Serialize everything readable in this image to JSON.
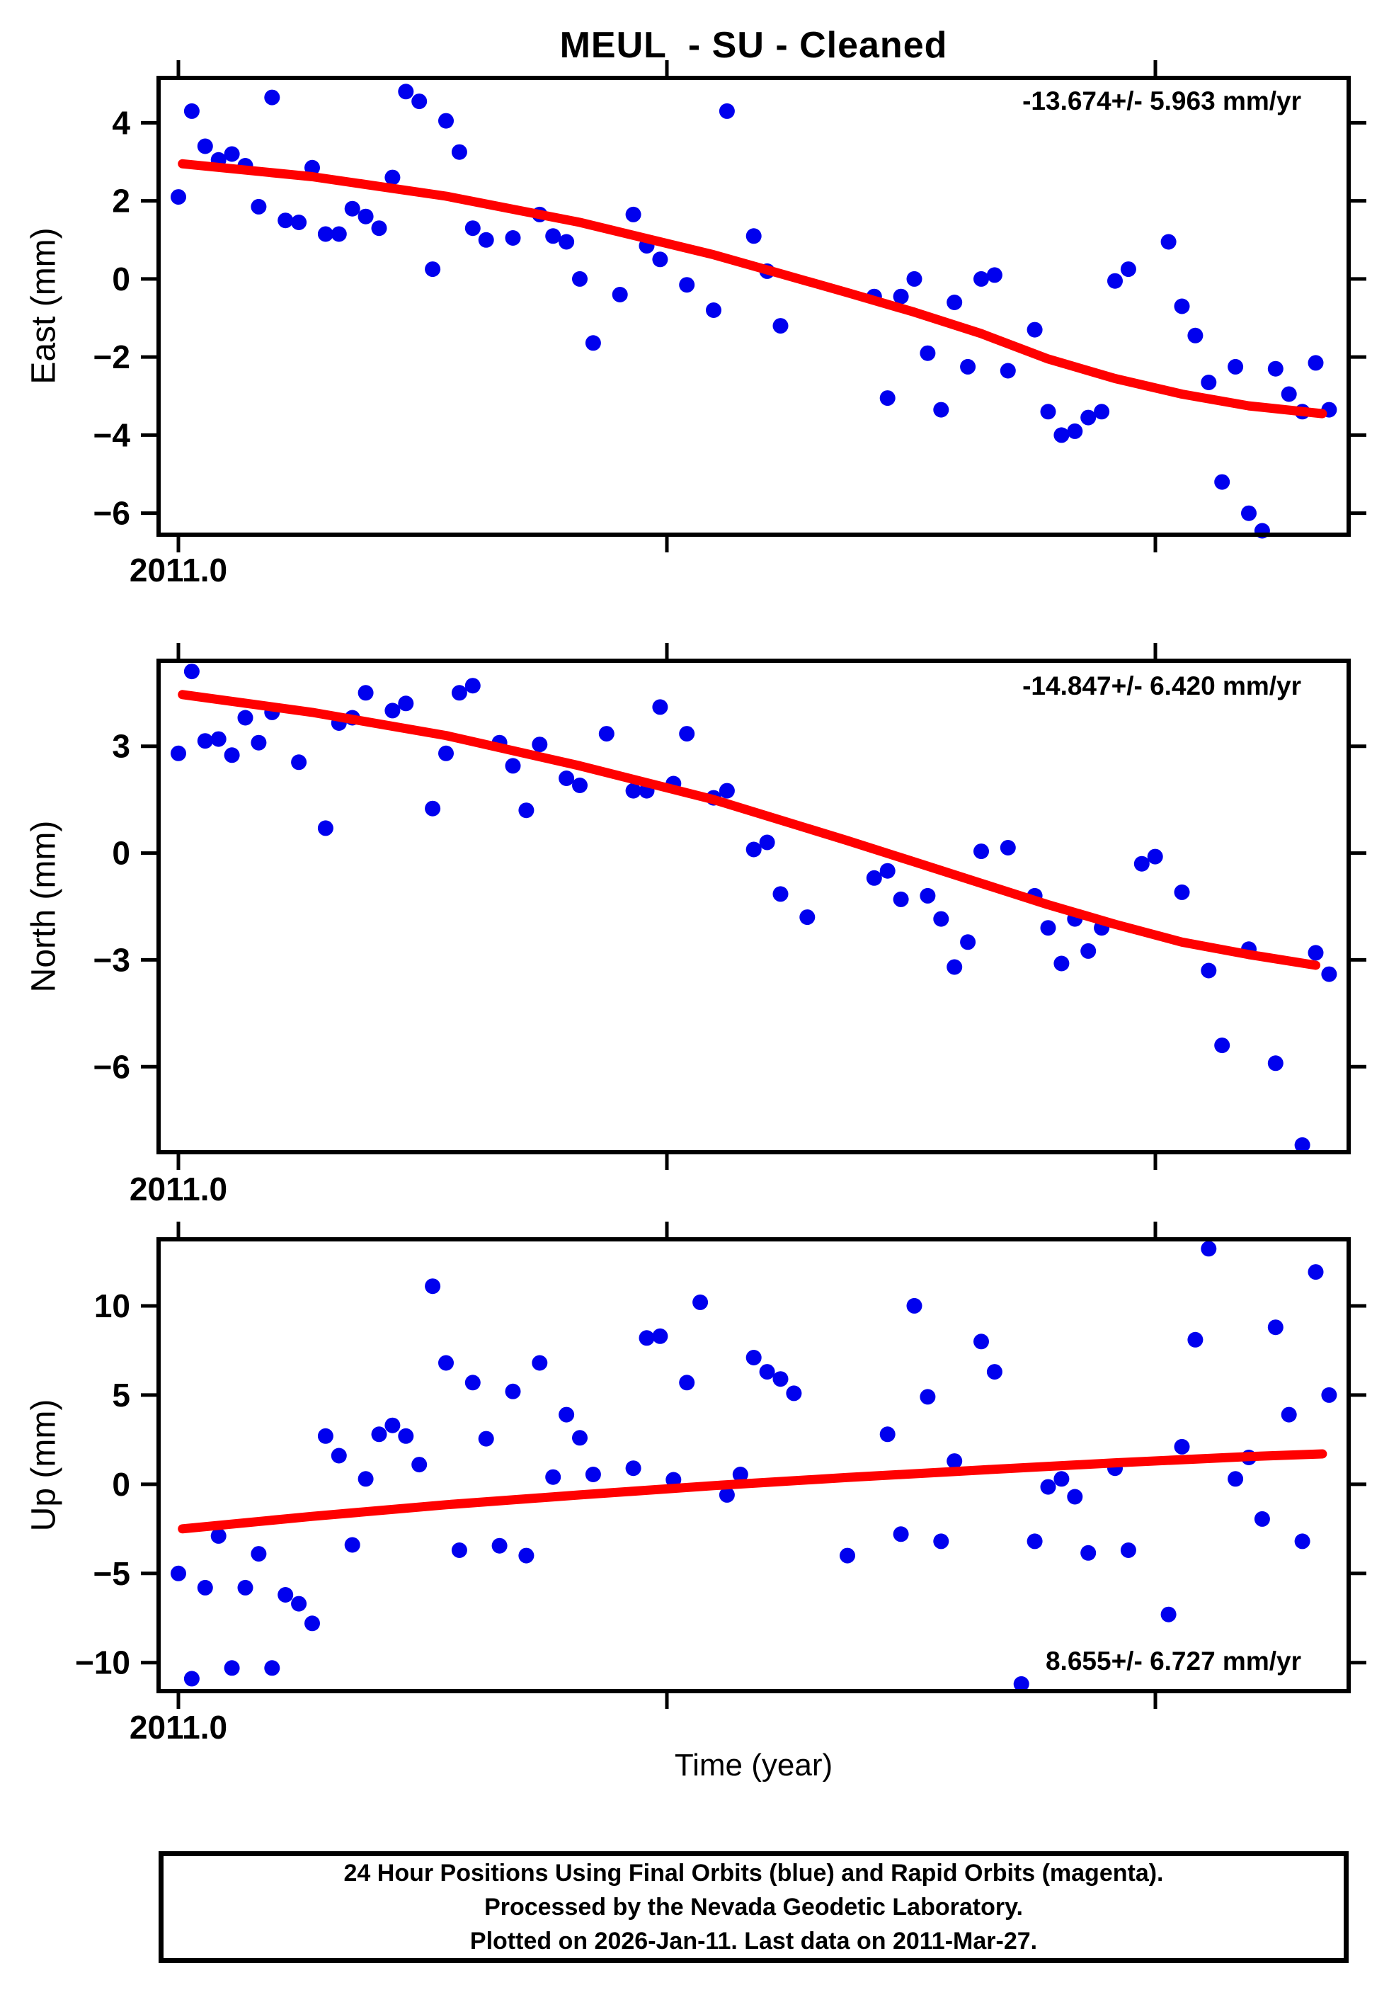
{
  "title": "MEUL  - SU - Cleaned",
  "x_axis_title": "Time (year)",
  "x_tick_label": "2011.0",
  "footer": {
    "line1": "24 Hour Positions Using Final Orbits (blue) and Rapid Orbits (magenta).",
    "line2": "Processed by the Nevada Geodetic Laboratory.",
    "line3": "Plotted on 2026-Jan-11. Last data on 2011-Mar-27."
  },
  "colors": {
    "final_orbit_points": "#0000ee",
    "fit_curve": "#ff0000",
    "frame": "#000000"
  },
  "chart_data": {
    "type": "scatter",
    "x_units": "decimal year",
    "x_start": 2011.0,
    "x_tick_values": [
      2011.0,
      2011.1,
      2011.2
    ],
    "x_tick_labels": [
      "2011.0",
      "",
      ""
    ],
    "x_range_days": [
      0,
      87
    ],
    "legend": "blue dots = daily 24-hour positions (final orbits); red line = model fit",
    "panels": [
      {
        "id": "east",
        "ylabel": "East (mm)",
        "rate_label": "-13.674+/- 5.963 mm/yr",
        "rate_label_corner": "top-right",
        "yticks": [
          4,
          2,
          0,
          -2,
          -4,
          -6
        ],
        "ylim": [
          -6.55,
          5.15
        ],
        "points_day_mm": [
          [
            0,
            2.1
          ],
          [
            1,
            4.3
          ],
          [
            2,
            3.4
          ],
          [
            3,
            3.05
          ],
          [
            4,
            3.2
          ],
          [
            5,
            2.9
          ],
          [
            6,
            1.85
          ],
          [
            7,
            4.65
          ],
          [
            8,
            1.5
          ],
          [
            9,
            1.45
          ],
          [
            10,
            2.85
          ],
          [
            11,
            1.15
          ],
          [
            12,
            1.15
          ],
          [
            13,
            1.8
          ],
          [
            14,
            1.6
          ],
          [
            15,
            1.3
          ],
          [
            16,
            2.6
          ],
          [
            17,
            4.8
          ],
          [
            18,
            4.55
          ],
          [
            19,
            0.25
          ],
          [
            20,
            4.05
          ],
          [
            21,
            3.25
          ],
          [
            22,
            1.3
          ],
          [
            23,
            1.0
          ],
          [
            25,
            1.05
          ],
          [
            27,
            1.65
          ],
          [
            28,
            1.1
          ],
          [
            29,
            0.95
          ],
          [
            30,
            0.0
          ],
          [
            31,
            -1.64
          ],
          [
            33,
            -0.4
          ],
          [
            34,
            1.65
          ],
          [
            35,
            0.85
          ],
          [
            36,
            0.5
          ],
          [
            38,
            -0.15
          ],
          [
            40,
            -0.8
          ],
          [
            41,
            4.3
          ],
          [
            43,
            1.1
          ],
          [
            44,
            0.2
          ],
          [
            45,
            -1.2
          ],
          [
            52,
            -0.45
          ],
          [
            53,
            -3.05
          ],
          [
            54,
            -0.45
          ],
          [
            55,
            0.0
          ],
          [
            56,
            -1.9
          ],
          [
            57,
            -3.35
          ],
          [
            58,
            -0.6
          ],
          [
            59,
            -2.25
          ],
          [
            60,
            0.0
          ],
          [
            61,
            0.1
          ],
          [
            62,
            -2.35
          ],
          [
            64,
            -1.3
          ],
          [
            65,
            -3.4
          ],
          [
            66,
            -4.0
          ],
          [
            67,
            -3.9
          ],
          [
            68,
            -3.55
          ],
          [
            69,
            -3.4
          ],
          [
            70,
            -0.05
          ],
          [
            71,
            0.25
          ],
          [
            74,
            0.95
          ],
          [
            75,
            -0.7
          ],
          [
            76,
            -1.45
          ],
          [
            77,
            -2.65
          ],
          [
            78,
            -5.2
          ],
          [
            79,
            -2.25
          ],
          [
            80,
            -6.0
          ],
          [
            81,
            -6.45
          ],
          [
            82,
            -2.3
          ],
          [
            83,
            -2.95
          ],
          [
            84,
            -3.4
          ],
          [
            85,
            -2.15
          ],
          [
            86,
            -3.35
          ]
        ],
        "fit_curve_day_mm": [
          [
            0.3,
            2.95
          ],
          [
            10,
            2.62
          ],
          [
            20,
            2.12
          ],
          [
            30,
            1.45
          ],
          [
            40,
            0.62
          ],
          [
            50,
            -0.35
          ],
          [
            55,
            -0.85
          ],
          [
            60,
            -1.4
          ],
          [
            65,
            -2.05
          ],
          [
            70,
            -2.55
          ],
          [
            75,
            -2.95
          ],
          [
            80,
            -3.25
          ],
          [
            85.5,
            -3.45
          ]
        ]
      },
      {
        "id": "north",
        "ylabel": "North (mm)",
        "rate_label": "-14.847+/- 6.420 mm/yr",
        "rate_label_corner": "top-right",
        "yticks": [
          3,
          0,
          -3,
          -6
        ],
        "ylim": [
          -8.4,
          5.4
        ],
        "points_day_mm": [
          [
            0,
            2.8
          ],
          [
            1,
            5.1
          ],
          [
            2,
            3.15
          ],
          [
            3,
            3.2
          ],
          [
            4,
            2.75
          ],
          [
            5,
            3.8
          ],
          [
            6,
            3.1
          ],
          [
            7,
            3.95
          ],
          [
            9,
            2.55
          ],
          [
            11,
            0.7
          ],
          [
            12,
            3.65
          ],
          [
            13,
            3.8
          ],
          [
            14,
            4.5
          ],
          [
            16,
            4.0
          ],
          [
            17,
            4.2
          ],
          [
            19,
            1.25
          ],
          [
            20,
            2.8
          ],
          [
            21,
            4.5
          ],
          [
            22,
            4.7
          ],
          [
            24,
            3.1
          ],
          [
            25,
            2.45
          ],
          [
            26,
            1.2
          ],
          [
            27,
            3.05
          ],
          [
            29,
            2.1
          ],
          [
            30,
            1.9
          ],
          [
            32,
            3.35
          ],
          [
            34,
            1.75
          ],
          [
            35,
            1.75
          ],
          [
            36,
            4.1
          ],
          [
            37,
            1.95
          ],
          [
            38,
            3.35
          ],
          [
            40,
            1.55
          ],
          [
            41,
            1.75
          ],
          [
            43,
            0.1
          ],
          [
            44,
            0.3
          ],
          [
            45,
            -1.15
          ],
          [
            47,
            -1.8
          ],
          [
            52,
            -0.7
          ],
          [
            53,
            -0.5
          ],
          [
            54,
            -1.3
          ],
          [
            56,
            -1.2
          ],
          [
            57,
            -1.85
          ],
          [
            58,
            -3.2
          ],
          [
            59,
            -2.5
          ],
          [
            60,
            0.05
          ],
          [
            62,
            0.15
          ],
          [
            64,
            -1.2
          ],
          [
            65,
            -2.1
          ],
          [
            66,
            -3.1
          ],
          [
            67,
            -1.85
          ],
          [
            68,
            -2.75
          ],
          [
            69,
            -2.1
          ],
          [
            72,
            -0.3
          ],
          [
            73,
            -0.1
          ],
          [
            75,
            -1.1
          ],
          [
            77,
            -3.3
          ],
          [
            78,
            -5.4
          ],
          [
            80,
            -2.7
          ],
          [
            82,
            -5.9
          ],
          [
            84,
            -8.2
          ],
          [
            85,
            -2.8
          ],
          [
            86,
            -3.4
          ]
        ],
        "fit_curve_day_mm": [
          [
            0.3,
            4.45
          ],
          [
            10,
            3.95
          ],
          [
            20,
            3.3
          ],
          [
            30,
            2.45
          ],
          [
            40,
            1.5
          ],
          [
            50,
            0.35
          ],
          [
            55,
            -0.25
          ],
          [
            60,
            -0.85
          ],
          [
            65,
            -1.45
          ],
          [
            70,
            -2.0
          ],
          [
            75,
            -2.5
          ],
          [
            80,
            -2.85
          ],
          [
            85,
            -3.15
          ]
        ]
      },
      {
        "id": "up",
        "ylabel": "Up (mm)",
        "rate_label": "8.655+/- 6.727 mm/yr",
        "rate_label_corner": "bottom-right",
        "yticks": [
          10,
          5,
          0,
          -5,
          -10
        ],
        "ylim": [
          -11.6,
          13.73
        ],
        "points_day_mm": [
          [
            0,
            -5.0
          ],
          [
            1,
            -10.9
          ],
          [
            2,
            -5.8
          ],
          [
            3,
            -2.9
          ],
          [
            4,
            -10.3
          ],
          [
            5,
            -5.8
          ],
          [
            6,
            -3.9
          ],
          [
            7,
            -10.3
          ],
          [
            8,
            -6.2
          ],
          [
            9,
            -6.7
          ],
          [
            10,
            -7.8
          ],
          [
            11,
            2.7
          ],
          [
            12,
            1.6
          ],
          [
            13,
            -3.4
          ],
          [
            14,
            0.3
          ],
          [
            15,
            2.8
          ],
          [
            16,
            3.3
          ],
          [
            17,
            2.7
          ],
          [
            18,
            1.1
          ],
          [
            19,
            11.1
          ],
          [
            20,
            6.8
          ],
          [
            21,
            -3.7
          ],
          [
            22,
            5.7
          ],
          [
            23,
            2.55
          ],
          [
            24,
            -3.45
          ],
          [
            25,
            5.2
          ],
          [
            26,
            -4.0
          ],
          [
            27,
            6.8
          ],
          [
            28,
            0.4
          ],
          [
            29,
            3.9
          ],
          [
            30,
            2.6
          ],
          [
            31,
            0.55
          ],
          [
            34,
            0.9
          ],
          [
            35,
            8.2
          ],
          [
            36,
            8.3
          ],
          [
            37,
            0.25
          ],
          [
            38,
            5.7
          ],
          [
            39,
            10.2
          ],
          [
            41,
            -0.6
          ],
          [
            42,
            0.55
          ],
          [
            43,
            7.1
          ],
          [
            44,
            6.3
          ],
          [
            45,
            5.9
          ],
          [
            46,
            5.1
          ],
          [
            50,
            -4.0
          ],
          [
            53,
            2.8
          ],
          [
            54,
            -2.8
          ],
          [
            55,
            10.0
          ],
          [
            56,
            4.9
          ],
          [
            57,
            -3.2
          ],
          [
            58,
            1.3
          ],
          [
            60,
            8.0
          ],
          [
            61,
            6.3
          ],
          [
            63,
            -11.2
          ],
          [
            64,
            -3.2
          ],
          [
            65,
            -0.15
          ],
          [
            66,
            0.3
          ],
          [
            67,
            -0.7
          ],
          [
            68,
            -3.85
          ],
          [
            70,
            0.9
          ],
          [
            71,
            -3.7
          ],
          [
            74,
            -7.3
          ],
          [
            75,
            2.1
          ],
          [
            76,
            8.1
          ],
          [
            77,
            13.2
          ],
          [
            79,
            0.3
          ],
          [
            80,
            1.5
          ],
          [
            81,
            -1.95
          ],
          [
            82,
            8.8
          ],
          [
            83,
            3.9
          ],
          [
            84,
            -3.2
          ],
          [
            85,
            11.9
          ],
          [
            86,
            5.0
          ]
        ],
        "fit_curve_day_mm": [
          [
            0.3,
            -2.5
          ],
          [
            10,
            -1.8
          ],
          [
            20,
            -1.15
          ],
          [
            30,
            -0.6
          ],
          [
            40,
            -0.08
          ],
          [
            50,
            0.38
          ],
          [
            60,
            0.8
          ],
          [
            70,
            1.2
          ],
          [
            80,
            1.55
          ],
          [
            85.5,
            1.7
          ]
        ]
      }
    ]
  }
}
